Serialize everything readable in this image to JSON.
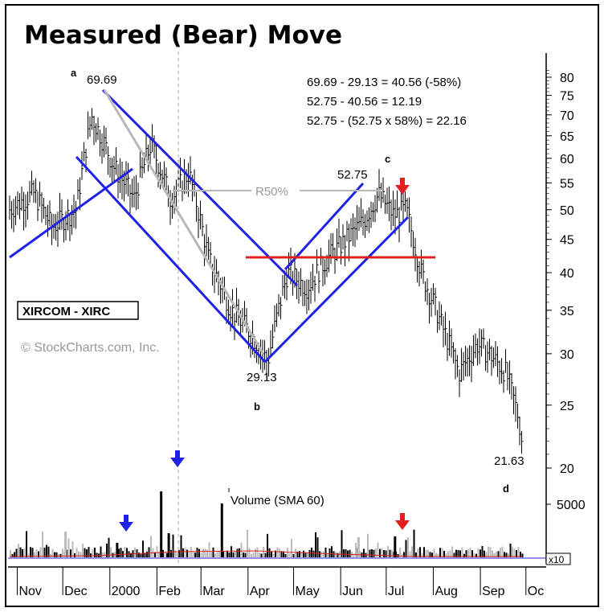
{
  "chart_data": {
    "type": "bar",
    "title": "Measured (Bear) Move",
    "symbol_box": "XIRCOM - XIRC",
    "watermark": "© StockCharts.com, Inc.",
    "volume_label": "Volume (SMA 60)",
    "volume_scale_label": "x10",
    "volume_tick": "5000",
    "x_tick_labels": [
      "Nov",
      "Dec",
      "2000",
      "Feb",
      "Mar",
      "Apr",
      "May",
      "Jun",
      "Jul",
      "Aug",
      "Sep",
      "Oc"
    ],
    "y_tick_labels": [
      "80",
      "75",
      "70",
      "65",
      "60",
      "55",
      "50",
      "45",
      "40",
      "35",
      "30",
      "25",
      "20"
    ],
    "y_tick_values": [
      80,
      75,
      70,
      65,
      60,
      55,
      50,
      45,
      40,
      35,
      30,
      25,
      20
    ],
    "y_scale": "log",
    "calc_lines": [
      "69.69 - 29.13 = 40.56 (-58%)",
      "52.75 - 40.56 = 12.19",
      "52.75 - (52.75 x 58%) = 22.16"
    ],
    "retracement_label": "R50%",
    "price_labels": {
      "high": "69.69",
      "low": "29.13",
      "rebound": "52.75",
      "target": "21.63"
    },
    "point_labels": {
      "a": "a",
      "b": "b",
      "c": "c",
      "d": "d"
    },
    "key_prices": {
      "high": 69.69,
      "low": 29.13,
      "rebound": 52.75,
      "close": 21.63
    },
    "price_path_dates": [
      "1999-10-27",
      "1999-11-12",
      "1999-11-24",
      "1999-12-10",
      "1999-12-20",
      "2000-01-04",
      "2000-01-17",
      "2000-01-28",
      "2000-02-10",
      "2000-02-22",
      "2000-03-06",
      "2000-03-21",
      "2000-04-04",
      "2000-04-14",
      "2000-04-27",
      "2000-05-10",
      "2000-05-23",
      "2000-06-05",
      "2000-06-16",
      "2000-06-26",
      "2000-07-06",
      "2000-07-14",
      "2000-07-24",
      "2000-08-07",
      "2000-08-18",
      "2000-08-30",
      "2000-09-07",
      "2000-09-18",
      "2000-09-26",
      "2000-09-29"
    ],
    "price_path_values": [
      50,
      53,
      47,
      50,
      69.69,
      58,
      52,
      63,
      52,
      57,
      42,
      35,
      32,
      29.13,
      40,
      38,
      42,
      45,
      48,
      52.75,
      49,
      50,
      40,
      33,
      28,
      31,
      30,
      28,
      24,
      21.63
    ],
    "colors": {
      "trend": "#1f22e6",
      "level": "#e0201e",
      "retrace": "#b8b8b8",
      "arrow_down_blue": "#1f22e6",
      "arrow_down_red": "#e0201e"
    },
    "grid": false,
    "arrows": [
      {
        "color": "blue",
        "panel": "volume"
      },
      {
        "color": "blue",
        "panel": "volume"
      },
      {
        "color": "red",
        "panel": "volume"
      },
      {
        "color": "red",
        "panel": "price"
      }
    ]
  }
}
